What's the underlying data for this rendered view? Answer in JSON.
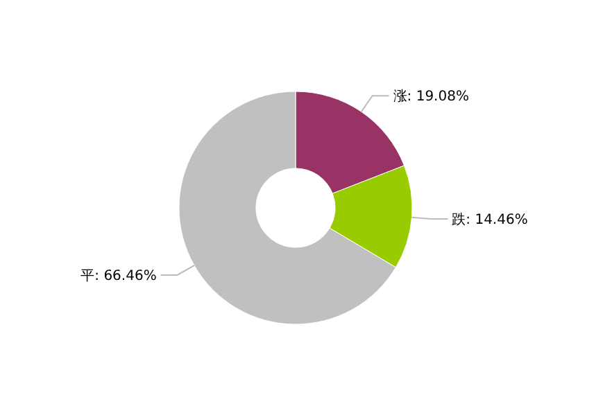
{
  "chart_data": {
    "type": "donut",
    "categories": [
      "涨",
      "跌",
      "平"
    ],
    "values": [
      19.08,
      14.46,
      66.46
    ],
    "value_labels": [
      "19.08%",
      "14.46%",
      "66.46%"
    ],
    "colors": [
      "#993366",
      "#99cc00",
      "#c0c0c0"
    ]
  }
}
